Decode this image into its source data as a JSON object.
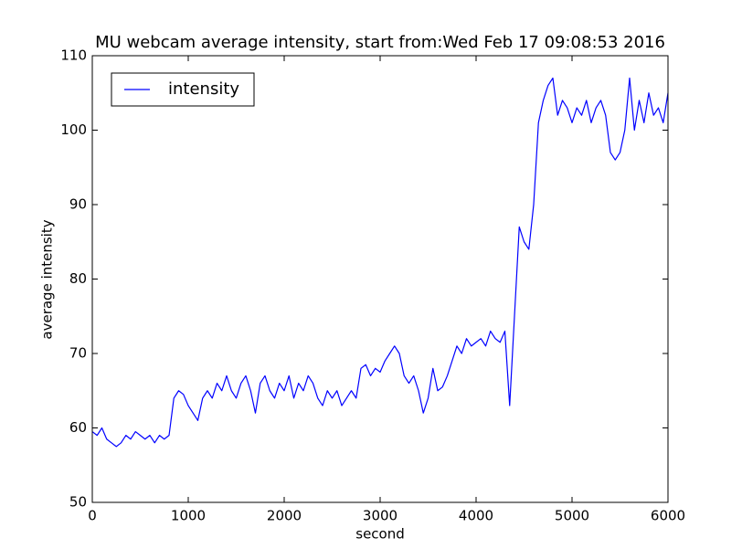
{
  "chart_data": {
    "type": "line",
    "title": "MU webcam average intensity, start from:Wed Feb 17 09:08:53 2016",
    "x_label": "second",
    "y_label": "average intensity",
    "x": [
      0,
      50,
      100,
      150,
      200,
      250,
      300,
      350,
      400,
      450,
      500,
      550,
      600,
      650,
      700,
      750,
      800,
      850,
      900,
      950,
      1000,
      1050,
      1100,
      1150,
      1200,
      1250,
      1300,
      1350,
      1400,
      1450,
      1500,
      1550,
      1600,
      1650,
      1700,
      1750,
      1800,
      1850,
      1900,
      1950,
      2000,
      2050,
      2100,
      2150,
      2200,
      2250,
      2300,
      2350,
      2400,
      2450,
      2500,
      2550,
      2600,
      2650,
      2700,
      2750,
      2800,
      2850,
      2900,
      2950,
      3000,
      3050,
      3100,
      3150,
      3200,
      3250,
      3300,
      3350,
      3400,
      3450,
      3500,
      3550,
      3600,
      3650,
      3700,
      3750,
      3800,
      3850,
      3900,
      3950,
      4000,
      4050,
      4100,
      4150,
      4200,
      4250,
      4300,
      4350,
      4400,
      4450,
      4500,
      4550,
      4600,
      4650,
      4700,
      4750,
      4800,
      4850,
      4900,
      4950,
      5000,
      5050,
      5100,
      5150,
      5200,
      5250,
      5300,
      5350,
      5400,
      5450,
      5500,
      5550,
      5600,
      5650,
      5700,
      5750,
      5800,
      5850,
      5900,
      5950,
      6000
    ],
    "series": [
      {
        "name": "intensity",
        "color": "#0000ff",
        "values": [
          59.5,
          59,
          60,
          58.5,
          58,
          57.5,
          58,
          59,
          58.5,
          59.5,
          59,
          58.5,
          59,
          58,
          59,
          58.5,
          59,
          64,
          65,
          64.5,
          63,
          62,
          61,
          64,
          65,
          64,
          66,
          65,
          67,
          65,
          64,
          66,
          67,
          65,
          62,
          66,
          67,
          65,
          64,
          66,
          65,
          67,
          64,
          66,
          65,
          67,
          66,
          64,
          63,
          65,
          64,
          65,
          63,
          64,
          65,
          64,
          68,
          68.5,
          67,
          68,
          67.5,
          69,
          70,
          71,
          70,
          67,
          66,
          67,
          65,
          62,
          64,
          68,
          65,
          65.5,
          67,
          69,
          71,
          70,
          72,
          71,
          71.5,
          72,
          71,
          73,
          72,
          71.5,
          73,
          63,
          75,
          87,
          85,
          84,
          90,
          101,
          104,
          106,
          107,
          102,
          104,
          103,
          101,
          103,
          102,
          104,
          101,
          103,
          104,
          102,
          97,
          96,
          97,
          100,
          107,
          100,
          104,
          101,
          105,
          102,
          103,
          101,
          105
        ]
      }
    ],
    "xlim": [
      0,
      6000
    ],
    "xticks": [
      0,
      1000,
      2000,
      3000,
      4000,
      5000,
      6000
    ],
    "ylim": [
      50,
      110
    ],
    "yticks": [
      50,
      60,
      70,
      80,
      90,
      100,
      110
    ],
    "legend": "upper left"
  }
}
